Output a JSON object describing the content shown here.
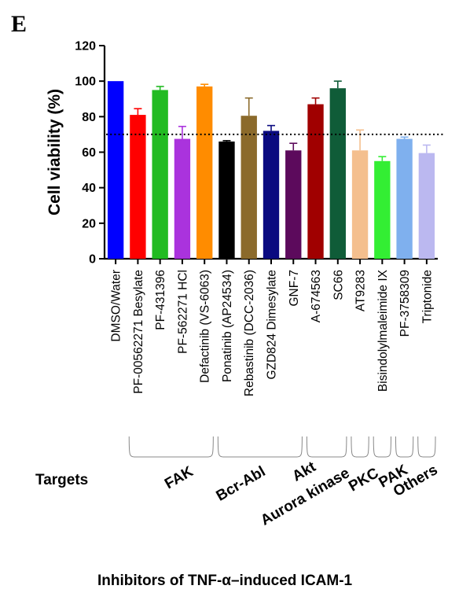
{
  "panel_letter": "E",
  "chart_data": {
    "type": "bar",
    "ylabel": "Cell viability (%)",
    "ylim": [
      0,
      120
    ],
    "yticks": [
      0,
      20,
      40,
      60,
      80,
      100,
      120
    ],
    "threshold": 70,
    "categories": [
      "DMSO/Water",
      "PF-00562271 Besylate",
      "PF-431396",
      "PF-562271 HCl",
      "Defactinib (VS-6063)",
      "Ponatinib (AP24534)",
      "Rebastinib (DCC-2036)",
      "GZD824 Dimesylate",
      "GNF-7",
      "A-674563",
      "SC66",
      "AT9283",
      "Bisindolylmaleimide IX",
      "PF-3758309",
      "Triptonide"
    ],
    "values": [
      100,
      81,
      95,
      67.5,
      97,
      66,
      80.5,
      72,
      61,
      87,
      96,
      61,
      55,
      67.5,
      59.5
    ],
    "errors": [
      0,
      3.5,
      2,
      7,
      1.2,
      0.5,
      10,
      3,
      4,
      3.5,
      4,
      11.5,
      2.5,
      1,
      4.5
    ],
    "colors": [
      "#0000ff",
      "#ff0000",
      "#22bb22",
      "#aa33dd",
      "#ff8c00",
      "#000000",
      "#8b6a2b",
      "#0a0a80",
      "#5c0a5c",
      "#a00000",
      "#0f5c38",
      "#f4bf8e",
      "#33ee33",
      "#7fb0ee",
      "#bbb8f0"
    ],
    "groups_title": "Targets",
    "groups": [
      {
        "label": "FAK",
        "start": 1,
        "end": 4
      },
      {
        "label": "Bcr-Abl",
        "start": 5,
        "end": 8
      },
      {
        "label": "Akt",
        "start": 9,
        "end": 10
      },
      {
        "label": "Aurora kinase",
        "start": 11,
        "end": 11
      },
      {
        "label": "PKC",
        "start": 12,
        "end": 12
      },
      {
        "label": "PAK",
        "start": 13,
        "end": 13
      },
      {
        "label": "Others",
        "start": 14,
        "end": 14
      }
    ],
    "footer": "Inhibitors of TNF-α–induced ICAM-1"
  }
}
